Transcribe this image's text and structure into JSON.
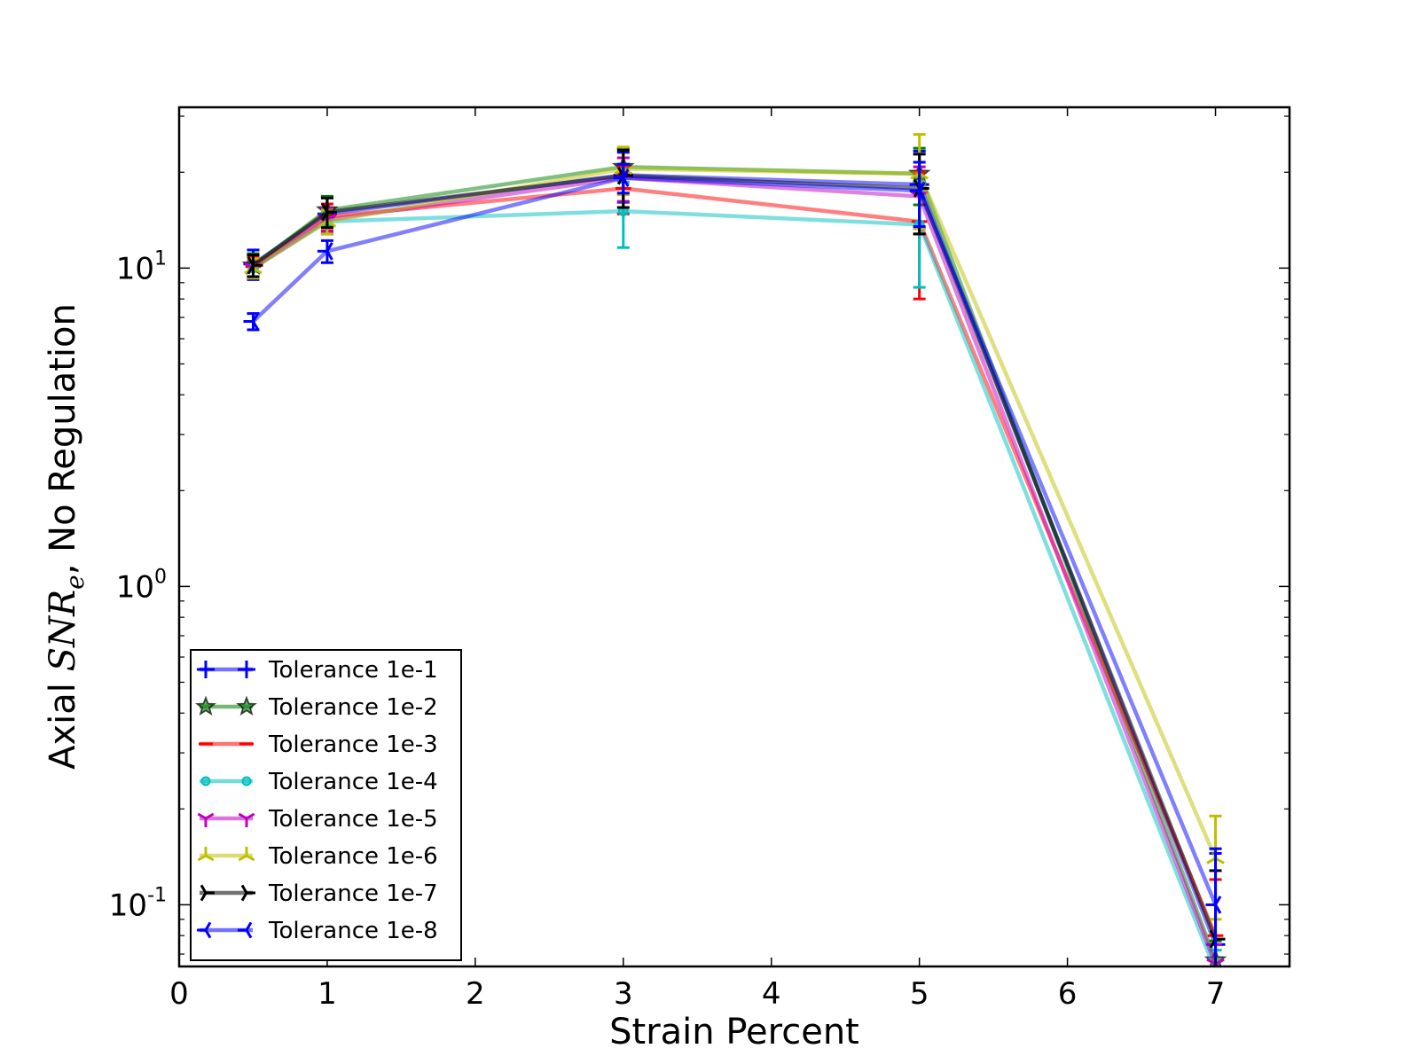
{
  "chart_data": {
    "type": "line",
    "xlabel": "Strain Percent",
    "ylabel_prefix": "Axial ",
    "ylabel_math_main": "SNR",
    "ylabel_math_sub": "e",
    "ylabel_suffix": ", No Regulation",
    "y_scale": "log",
    "xlim": [
      0,
      7.5
    ],
    "ylim": [
      0.064,
      32
    ],
    "x_ticks": [
      0,
      1,
      2,
      3,
      4,
      5,
      6,
      7
    ],
    "x_tick_labels": [
      "0",
      "1",
      "2",
      "3",
      "4",
      "5",
      "6",
      "7"
    ],
    "y_major_ticks": [
      0.1,
      1,
      10
    ],
    "y_tick_labels": [
      {
        "base": "10",
        "exp": "-1"
      },
      {
        "base": "10",
        "exp": "0"
      },
      {
        "base": "10",
        "exp": "1"
      }
    ],
    "grid": false,
    "legend_position": "lower-left",
    "x": [
      0.5,
      1,
      3,
      5,
      7
    ],
    "series": [
      {
        "name": "Tolerance 1e-1",
        "color": "#0000ff",
        "marker": "plus",
        "values": [
          10.3,
          14.8,
          19.6,
          18.3,
          0.075
        ],
        "err": [
          1.1,
          2.0,
          3.5,
          5.0,
          0.07
        ]
      },
      {
        "name": "Tolerance 1e-2",
        "color": "#008000",
        "marker": "star",
        "values": [
          10.2,
          15.2,
          20.8,
          19.8,
          0.067
        ],
        "err": [
          0.9,
          1.6,
          3.0,
          4.0,
          0.01
        ]
      },
      {
        "name": "Tolerance 1e-3",
        "color": "#ff0000",
        "marker": "hline",
        "values": [
          10.1,
          14.5,
          17.8,
          14.0,
          0.08
        ],
        "err": [
          0.8,
          1.4,
          3.0,
          6.0,
          0.04
        ]
      },
      {
        "name": "Tolerance 1e-4",
        "color": "#00bfbf",
        "marker": "circle",
        "values": [
          10.0,
          14.0,
          15.1,
          13.7,
          0.062
        ],
        "err": [
          0.6,
          1.0,
          3.5,
          5.0,
          0.01
        ]
      },
      {
        "name": "Tolerance 1e-5",
        "color": "#bf00bf",
        "marker": "tri_down",
        "values": [
          10.0,
          14.2,
          19.2,
          16.8,
          0.065
        ],
        "err": [
          0.6,
          1.2,
          3.0,
          4.0,
          0.01
        ]
      },
      {
        "name": "Tolerance 1e-6",
        "color": "#bfbf00",
        "marker": "tri_up",
        "values": [
          10.0,
          14.0,
          20.5,
          19.8,
          0.14
        ],
        "err": [
          0.7,
          1.2,
          3.5,
          6.5,
          0.05
        ]
      },
      {
        "name": "Tolerance 1e-7",
        "color": "#000000",
        "marker": "tri_right",
        "values": [
          10.2,
          15.0,
          19.5,
          17.8,
          0.078
        ],
        "err": [
          0.8,
          1.6,
          4.0,
          5.0,
          0.05
        ]
      },
      {
        "name": "Tolerance 1e-8",
        "color": "#0000ff",
        "marker": "tri_left",
        "values": [
          6.8,
          11.3,
          19.2,
          17.5,
          0.1
        ],
        "err": [
          0.4,
          0.9,
          2.0,
          4.0,
          0.05
        ]
      }
    ]
  }
}
